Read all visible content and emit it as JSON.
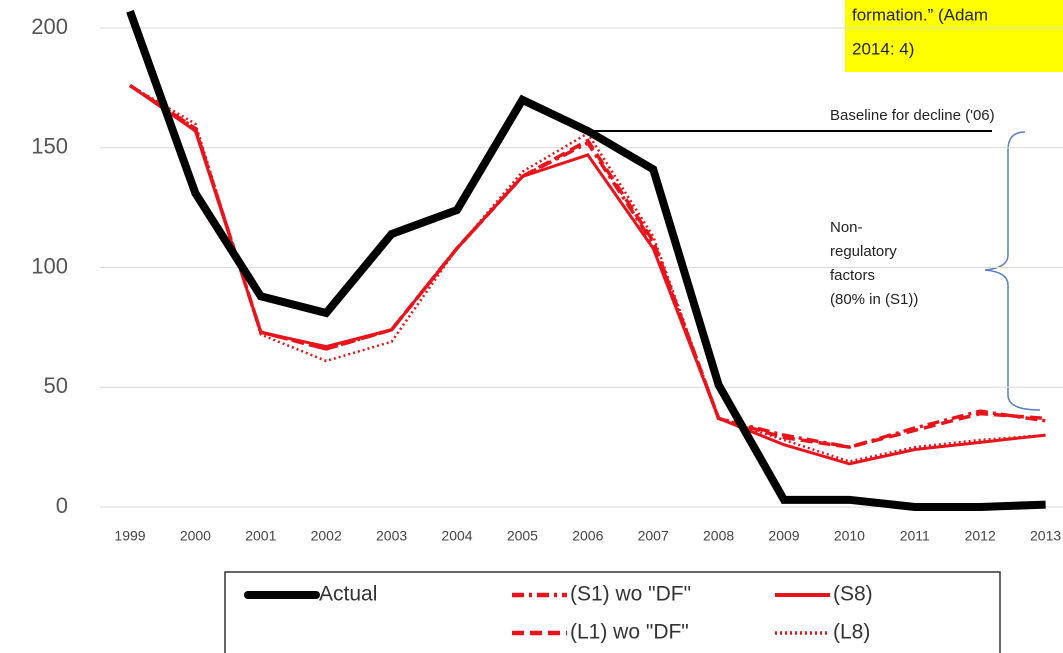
{
  "chart_data": {
    "type": "line",
    "categories": [
      "1999",
      "2000",
      "2001",
      "2002",
      "2003",
      "2004",
      "2005",
      "2006",
      "2007",
      "2008",
      "2009",
      "2010",
      "2011",
      "2012",
      "2013"
    ],
    "series": [
      {
        "name": "Actual",
        "color": "#000000",
        "style": "solid-thick",
        "values": [
          207,
          131,
          88,
          81,
          114,
          124,
          170,
          157,
          141,
          51,
          3,
          3,
          0,
          0,
          1
        ]
      },
      {
        "name": "(S1) wo \"DF\"",
        "color": "#e8141b",
        "style": "dash-dot",
        "values": [
          176,
          158,
          73,
          66,
          74,
          108,
          138,
          152,
          110,
          37,
          30,
          25,
          33,
          40,
          36
        ]
      },
      {
        "name": "(S8)",
        "color": "#e8141b",
        "style": "solid",
        "values": [
          176,
          157,
          73,
          67,
          74,
          108,
          138,
          147,
          108,
          37,
          26,
          18,
          24,
          27,
          30
        ]
      },
      {
        "name": "(L1) wo \"DF\"",
        "color": "#e8141b",
        "style": "dashed",
        "values": [
          176,
          158,
          73,
          66,
          74,
          108,
          138,
          153,
          111,
          37,
          29,
          25,
          32,
          39,
          37
        ]
      },
      {
        "name": "(L8)",
        "color": "#e8141b",
        "style": "dotted",
        "values": [
          176,
          160,
          72,
          61,
          69,
          108,
          140,
          156,
          113,
          37,
          28,
          19,
          25,
          28,
          30
        ]
      }
    ],
    "ylim": [
      0,
      200
    ],
    "yticks": [
      0,
      50,
      100,
      150,
      200
    ],
    "grid": true,
    "annotations": {
      "baseline": "Baseline for decline ('06)",
      "factors": [
        "Non-",
        "regulatory",
        "factors",
        "(80% in (S1))"
      ],
      "quote": [
        "formation.” (Adam",
        "2014: 4)"
      ]
    }
  }
}
